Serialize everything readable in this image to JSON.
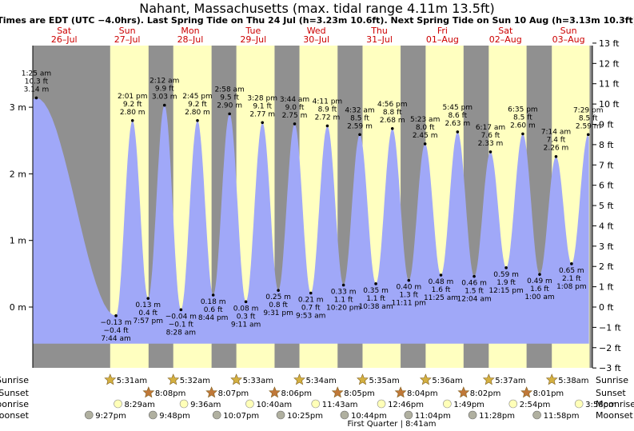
{
  "title": "Nahant, Massachusetts (max. tidal range 4.11m 13.5ft)",
  "subtitle": "Times are EDT (UTC −4.0hrs). Last Spring Tide on Thu 24 Jul (h=3.23m 10.6ft). Next Spring Tide on Sun 10 Aug (h=3.13m 10.3ft)",
  "colors": {
    "day": "#ffffc0",
    "night": "#909090",
    "water": "#a0a8f8",
    "sunrise_star": "#d4b040",
    "sunset_star": "#c07838",
    "moonrise": "#ffffb8",
    "moonset": "#b0b0a0"
  },
  "days": [
    {
      "dow": "Sat",
      "date": "26–Jul"
    },
    {
      "dow": "Sun",
      "date": "27–Jul"
    },
    {
      "dow": "Mon",
      "date": "28–Jul"
    },
    {
      "dow": "Tue",
      "date": "29–Jul"
    },
    {
      "dow": "Wed",
      "date": "30–Jul"
    },
    {
      "dow": "Thu",
      "date": "31–Jul"
    },
    {
      "dow": "Fri",
      "date": "01–Aug"
    },
    {
      "dow": "Sat",
      "date": "02–Aug"
    },
    {
      "dow": "Sun",
      "date": "03–Aug"
    }
  ],
  "row_labels": {
    "sunrise": "Sunrise",
    "sunset": "Sunset",
    "moonrise": "Moonrise",
    "moonset": "Moonset"
  },
  "moon_phase": "First Quarter | 8:41am",
  "chart_data": {
    "type": "area",
    "x_unit": "hours since 00:00 Sat 26-Jul (EDT)",
    "ylim_m": [
      -0.73,
      3.66
    ],
    "ylim_ft": [
      -3,
      13
    ],
    "left_ticks": [
      {
        "v": 0,
        "label": "0 m"
      },
      {
        "v": 1,
        "label": "1 m"
      },
      {
        "v": 2,
        "label": "2 m"
      },
      {
        "v": 3,
        "label": "3 m"
      }
    ],
    "right_ticks": [
      {
        "v": -3,
        "label": "−3 ft"
      },
      {
        "v": -2,
        "label": "−2 ft"
      },
      {
        "v": -1,
        "label": "−1 ft"
      },
      {
        "v": 0,
        "label": "0 ft"
      },
      {
        "v": 1,
        "label": "1 ft"
      },
      {
        "v": 2,
        "label": "2 ft"
      },
      {
        "v": 3,
        "label": "3 ft"
      },
      {
        "v": 4,
        "label": "4 ft"
      },
      {
        "v": 5,
        "label": "5 ft"
      },
      {
        "v": 6,
        "label": "6 ft"
      },
      {
        "v": 7,
        "label": "7 ft"
      },
      {
        "v": 8,
        "label": "8 ft"
      },
      {
        "v": 9,
        "label": "9 ft"
      },
      {
        "v": 10,
        "label": "10 ft"
      },
      {
        "v": 11,
        "label": "11 ft"
      },
      {
        "v": 12,
        "label": "12 ft"
      },
      {
        "v": 13,
        "label": "13 ft"
      }
    ],
    "tides": [
      {
        "t": 1.417,
        "m": 3.14,
        "time": "1:25 am",
        "ft": "10.3 ft",
        "mlbl": "3.14 m",
        "type": "high"
      },
      {
        "t": 31.733,
        "m": -0.13,
        "time": "7:44 am",
        "ft": "−0.4 ft",
        "mlbl": "−0.13 m",
        "type": "low"
      },
      {
        "t": 38.017,
        "m": 2.8,
        "time": "2:01 pm",
        "ft": "9.2 ft",
        "mlbl": "2.80 m",
        "type": "high"
      },
      {
        "t": 43.95,
        "m": 0.13,
        "time": "7:57 pm",
        "ft": "0.4 ft",
        "mlbl": "0.13 m",
        "type": "low"
      },
      {
        "t": 50.2,
        "m": 3.03,
        "time": "2:12 am",
        "ft": "9.9 ft",
        "mlbl": "3.03 m",
        "type": "high"
      },
      {
        "t": 56.467,
        "m": -0.04,
        "time": "8:28 am",
        "ft": "−0.1 ft",
        "mlbl": "−0.04 m",
        "type": "low"
      },
      {
        "t": 62.75,
        "m": 2.8,
        "time": "2:45 pm",
        "ft": "9.2 ft",
        "mlbl": "2.80 m",
        "type": "high"
      },
      {
        "t": 68.733,
        "m": 0.18,
        "time": "8:44 pm",
        "ft": "0.6 ft",
        "mlbl": "0.18 m",
        "type": "low"
      },
      {
        "t": 74.967,
        "m": 2.9,
        "time": "2:58 am",
        "ft": "9.5 ft",
        "mlbl": "2.90 m",
        "type": "high"
      },
      {
        "t": 81.183,
        "m": 0.08,
        "time": "9:11 am",
        "ft": "0.3 ft",
        "mlbl": "0.08 m",
        "type": "low"
      },
      {
        "t": 87.467,
        "m": 2.77,
        "time": "3:28 pm",
        "ft": "9.1 ft",
        "mlbl": "2.77 m",
        "type": "high"
      },
      {
        "t": 93.517,
        "m": 0.25,
        "time": "9:31 pm",
        "ft": "0.8 ft",
        "mlbl": "0.25 m",
        "type": "low"
      },
      {
        "t": 99.733,
        "m": 2.75,
        "time": "3:44 am",
        "ft": "9.0 ft",
        "mlbl": "2.75 m",
        "type": "high"
      },
      {
        "t": 105.883,
        "m": 0.21,
        "time": "9:53 am",
        "ft": "0.7 ft",
        "mlbl": "0.21 m",
        "type": "low"
      },
      {
        "t": 112.183,
        "m": 2.72,
        "time": "4:11 pm",
        "ft": "8.9 ft",
        "mlbl": "2.72 m",
        "type": "high"
      },
      {
        "t": 118.333,
        "m": 0.33,
        "time": "10:20 pm",
        "ft": "1.1 ft",
        "mlbl": "0.33 m",
        "type": "low"
      },
      {
        "t": 124.533,
        "m": 2.59,
        "time": "4:32 am",
        "ft": "8.5 ft",
        "mlbl": "2.59 m",
        "type": "high"
      },
      {
        "t": 130.633,
        "m": 0.35,
        "time": "10:38 am",
        "ft": "1.1 ft",
        "mlbl": "0.35 m",
        "type": "low"
      },
      {
        "t": 136.933,
        "m": 2.68,
        "time": "4:56 pm",
        "ft": "8.8 ft",
        "mlbl": "2.68 m",
        "type": "high"
      },
      {
        "t": 143.183,
        "m": 0.4,
        "time": "11:11 pm",
        "ft": "1.3 ft",
        "mlbl": "0.40 m",
        "type": "low"
      },
      {
        "t": 149.383,
        "m": 2.45,
        "time": "5:23 am",
        "ft": "8.0 ft",
        "mlbl": "2.45 m",
        "type": "high"
      },
      {
        "t": 155.417,
        "m": 0.48,
        "time": "11:25 am",
        "ft": "1.6 ft",
        "mlbl": "0.48 m",
        "type": "low"
      },
      {
        "t": 161.75,
        "m": 2.63,
        "time": "5:45 pm",
        "ft": "8.6 ft",
        "mlbl": "2.63 m",
        "type": "high"
      },
      {
        "t": 168.067,
        "m": 0.46,
        "time": "12:04 am",
        "ft": "1.5 ft",
        "mlbl": "0.46 m",
        "type": "low"
      },
      {
        "t": 174.283,
        "m": 2.33,
        "time": "6:17 am",
        "ft": "7.6 ft",
        "mlbl": "2.33 m",
        "type": "high"
      },
      {
        "t": 180.25,
        "m": 0.59,
        "time": "12:15 pm",
        "ft": "1.9 ft",
        "mlbl": "0.59 m",
        "type": "low"
      },
      {
        "t": 186.583,
        "m": 2.6,
        "time": "6:35 pm",
        "ft": "8.5 ft",
        "mlbl": "2.60 m",
        "type": "high"
      },
      {
        "t": 193.0,
        "m": 0.49,
        "time": "1:00 am",
        "ft": "1.6 ft",
        "mlbl": "0.49 m",
        "type": "low"
      },
      {
        "t": 199.233,
        "m": 2.26,
        "time": "7:14 am",
        "ft": "7.4 ft",
        "mlbl": "2.26 m",
        "type": "high"
      },
      {
        "t": 205.133,
        "m": 0.65,
        "time": "1:08 pm",
        "ft": "2.1 ft",
        "mlbl": "0.65 m",
        "type": "low"
      },
      {
        "t": 211.483,
        "m": 2.59,
        "time": "7:29 pm",
        "ft": "8.5 ft",
        "mlbl": "2.59 m",
        "type": "high"
      }
    ],
    "day_periods": [
      {
        "rise": 29.517,
        "set": 44.133
      },
      {
        "rise": 53.533,
        "set": 68.117
      },
      {
        "rise": 77.55,
        "set": 92.1
      },
      {
        "rise": 101.567,
        "set": 116.083
      },
      {
        "rise": 125.583,
        "set": 140.067
      },
      {
        "rise": 149.6,
        "set": 164.033
      },
      {
        "rise": 173.617,
        "set": 188.017
      },
      {
        "rise": 197.633,
        "set": 212.0
      }
    ],
    "sunrise": [
      {
        "t": 29.517,
        "label": "5:31am"
      },
      {
        "t": 53.533,
        "label": "5:32am"
      },
      {
        "t": 77.55,
        "label": "5:33am"
      },
      {
        "t": 101.567,
        "label": "5:34am"
      },
      {
        "t": 125.583,
        "label": "5:35am"
      },
      {
        "t": 149.6,
        "label": "5:36am"
      },
      {
        "t": 173.617,
        "label": "5:37am"
      },
      {
        "t": 197.633,
        "label": "5:38am"
      }
    ],
    "sunset": [
      {
        "t": 44.133,
        "label": "8:08pm"
      },
      {
        "t": 68.117,
        "label": "8:07pm"
      },
      {
        "t": 92.1,
        "label": "8:06pm"
      },
      {
        "t": 116.083,
        "label": "8:05pm"
      },
      {
        "t": 140.067,
        "label": "8:04pm"
      },
      {
        "t": 164.033,
        "label": "8:02pm"
      },
      {
        "t": 188.017,
        "label": "8:01pm"
      }
    ],
    "moonrise": [
      {
        "t": 32.483,
        "label": "8:29am"
      },
      {
        "t": 57.6,
        "label": "9:36am"
      },
      {
        "t": 82.667,
        "label": "10:40am"
      },
      {
        "t": 107.717,
        "label": "11:43am"
      },
      {
        "t": 132.767,
        "label": "12:46pm"
      },
      {
        "t": 157.817,
        "label": "1:49pm"
      },
      {
        "t": 182.9,
        "label": "2:54pm"
      },
      {
        "t": 207.967,
        "label": "3:58pm"
      }
    ],
    "moonset": [
      {
        "t": 21.45,
        "label": "9:27pm"
      },
      {
        "t": 45.8,
        "label": "9:48pm"
      },
      {
        "t": 70.117,
        "label": "10:07pm"
      },
      {
        "t": 94.417,
        "label": "10:25pm"
      },
      {
        "t": 118.733,
        "label": "10:44pm"
      },
      {
        "t": 143.067,
        "label": "11:04pm"
      },
      {
        "t": 167.467,
        "label": "11:28pm"
      },
      {
        "t": 191.967,
        "label": "11:58pm"
      }
    ]
  }
}
